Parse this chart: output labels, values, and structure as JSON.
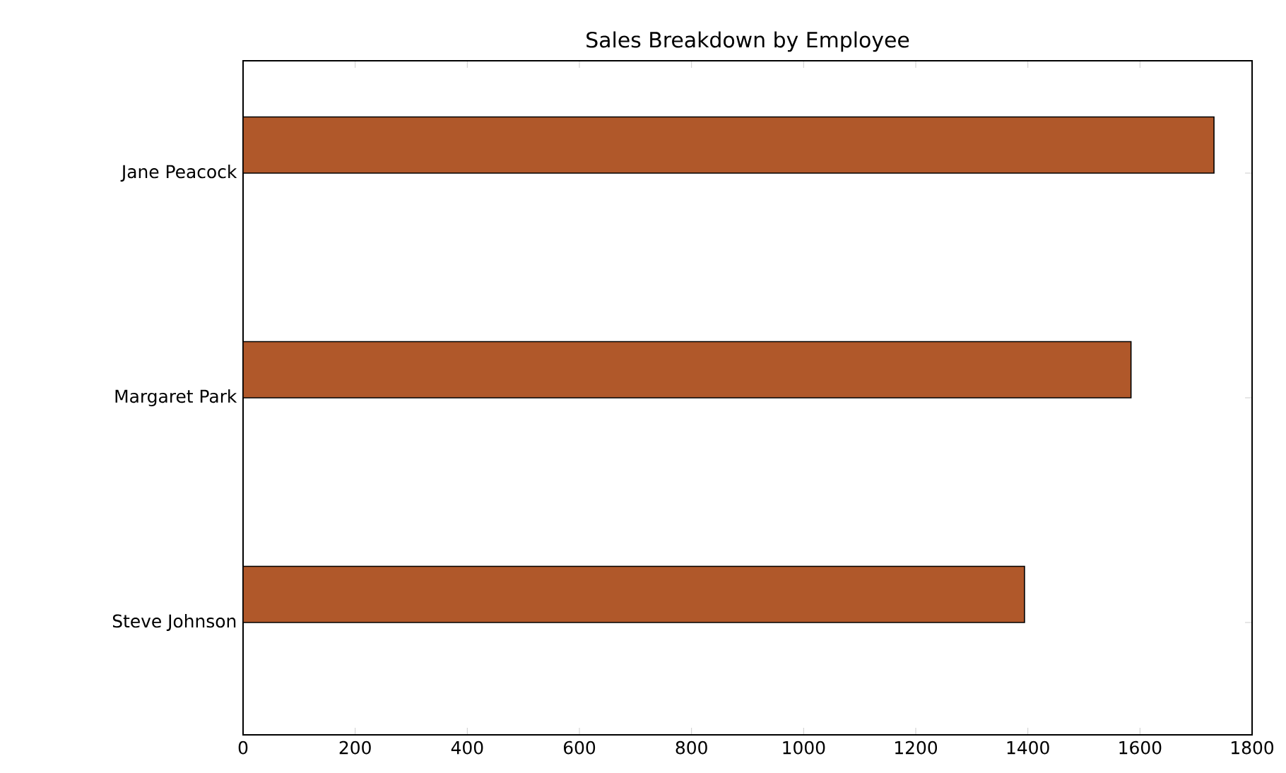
{
  "chart_data": {
    "type": "bar",
    "orientation": "horizontal",
    "title": "Sales Breakdown by Employee",
    "categories": [
      "Jane Peacock",
      "Margaret Park",
      "Steve Johnson"
    ],
    "values": [
      1732,
      1584,
      1394
    ],
    "color": "#b0582a",
    "xlim": [
      0,
      1800
    ],
    "xticks": [
      0,
      200,
      400,
      600,
      800,
      1000,
      1200,
      1400,
      1600,
      1800
    ]
  }
}
